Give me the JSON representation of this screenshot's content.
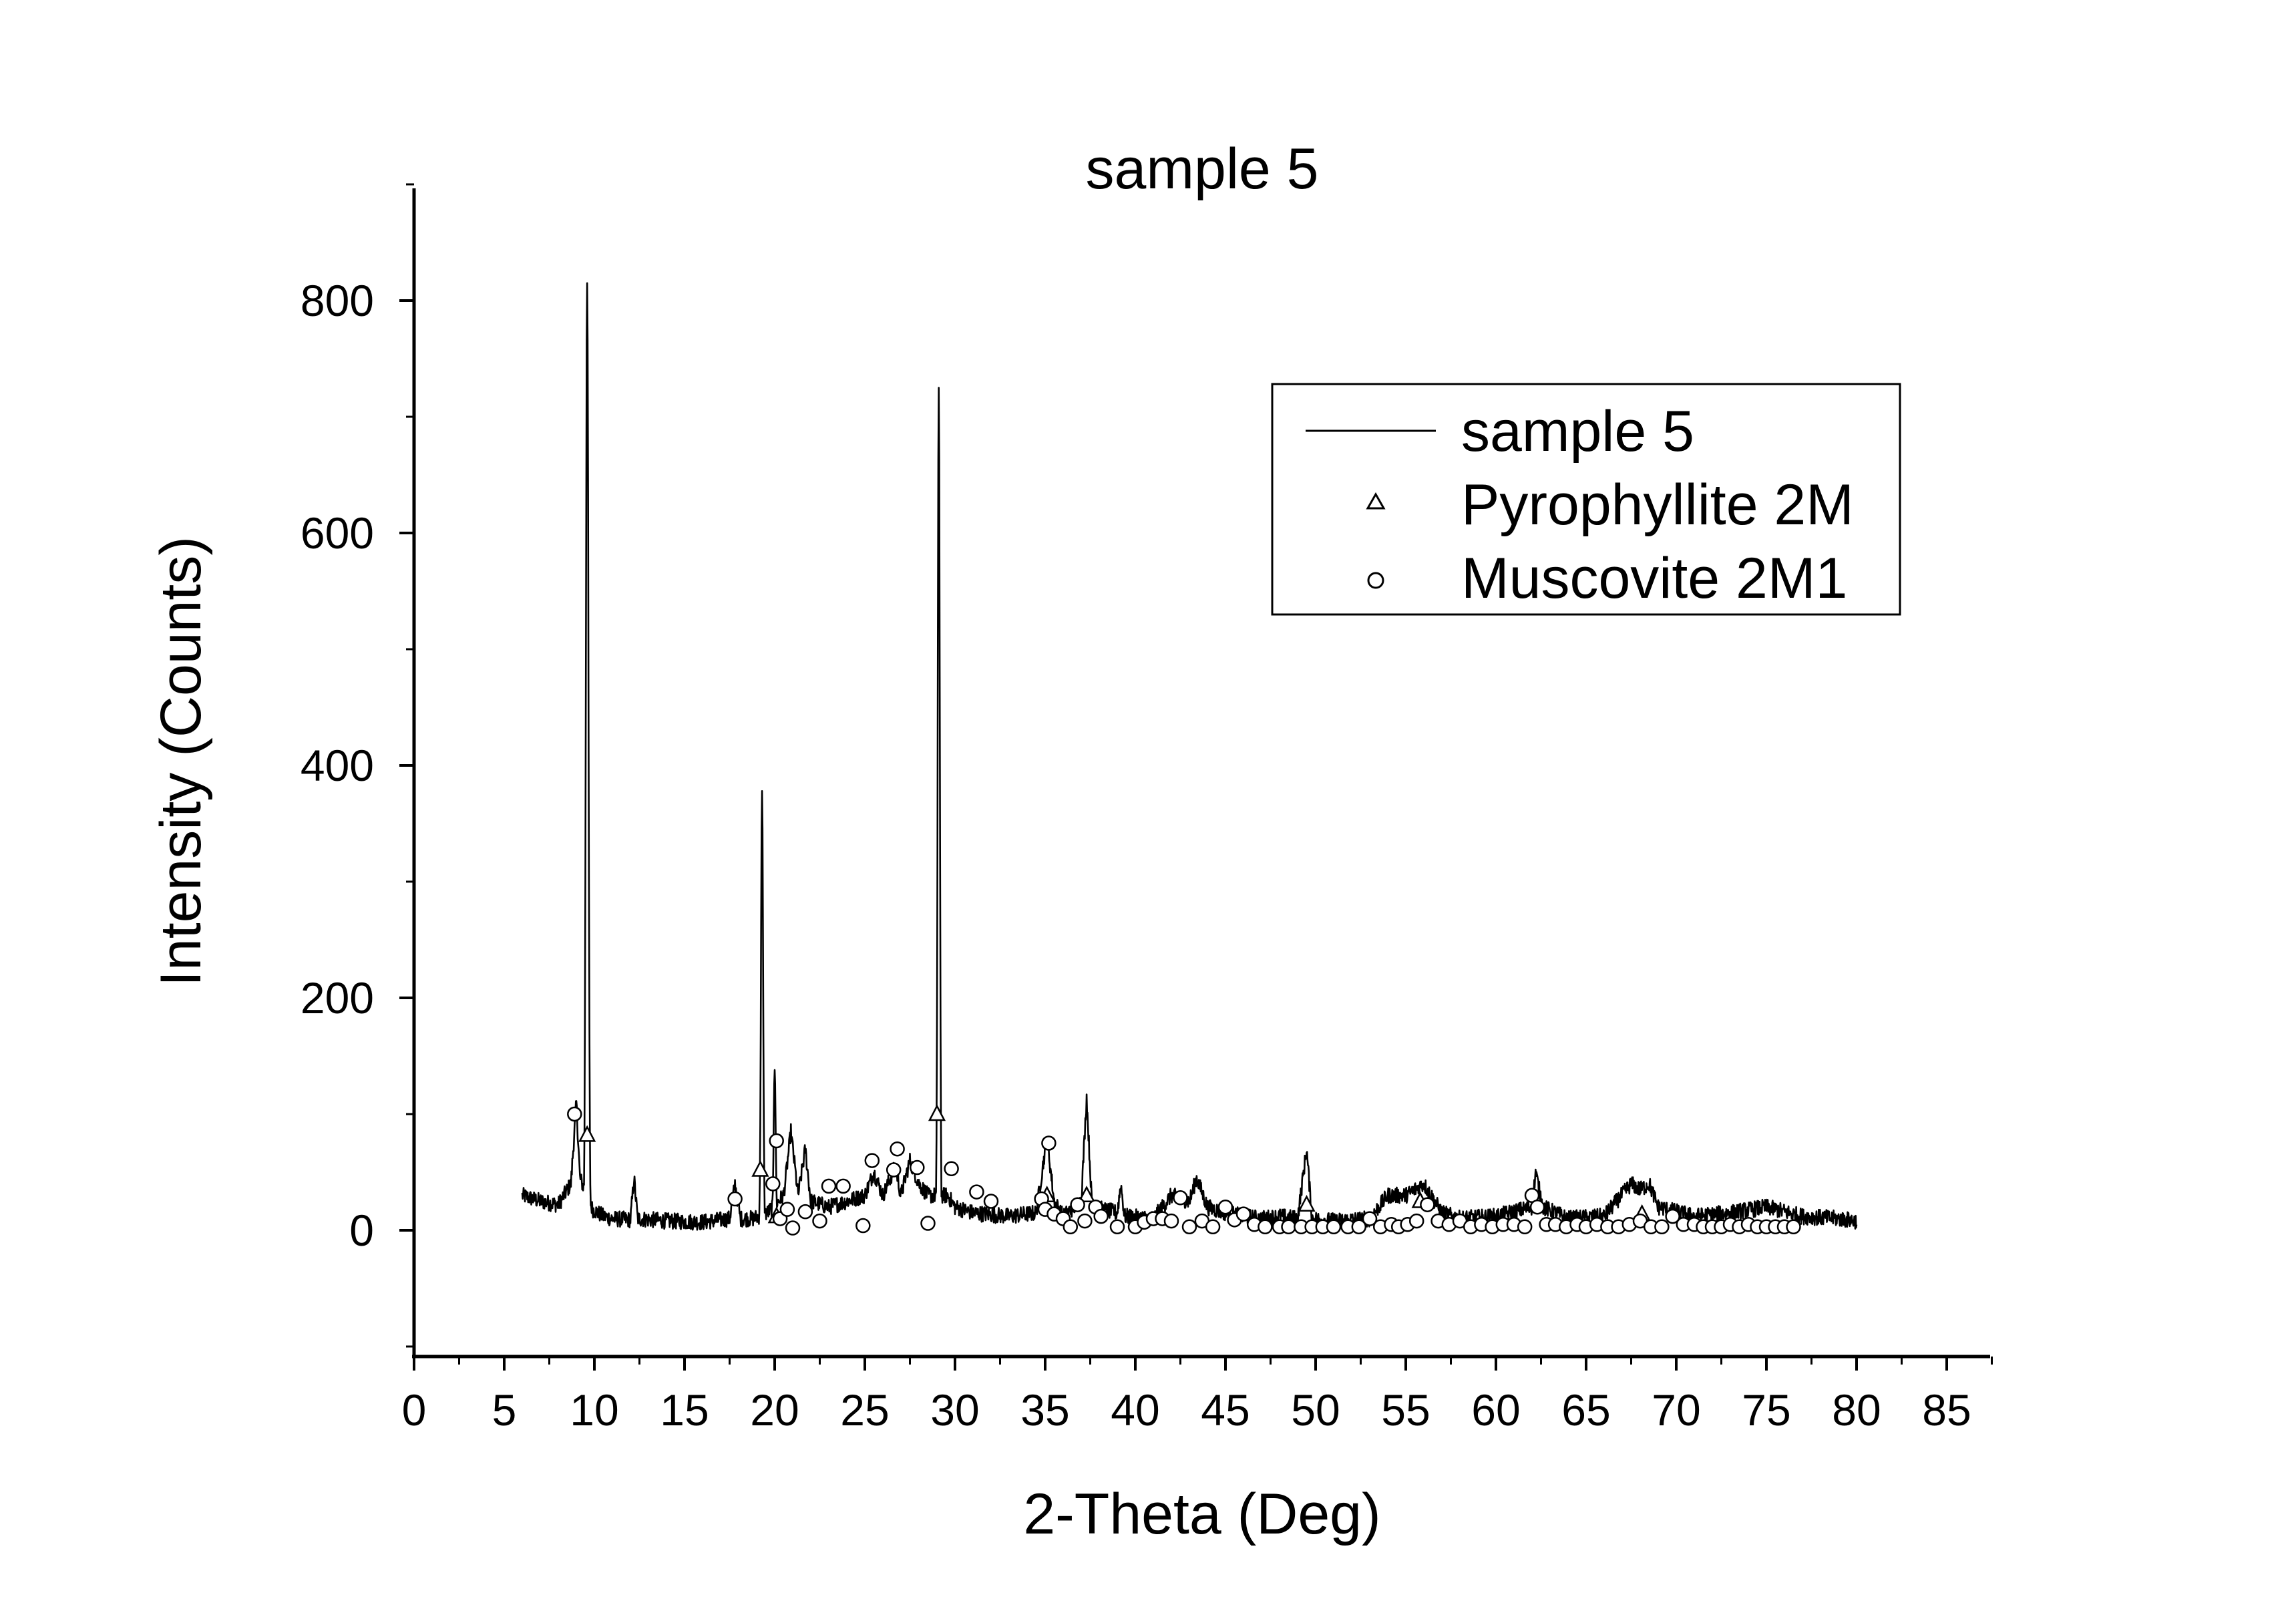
{
  "chart_data": {
    "type": "line",
    "title": "sample 5",
    "xlabel": "2-Theta (Deg)",
    "ylabel": "Intensity (Counts)",
    "xlim": [
      0,
      87.5
    ],
    "ylim": [
      -100,
      900
    ],
    "x_ticks": [
      0,
      5,
      10,
      15,
      20,
      25,
      30,
      35,
      40,
      45,
      50,
      55,
      60,
      65,
      70,
      75,
      80,
      85
    ],
    "x_tick_labels": [
      "0",
      "5",
      "10",
      "15",
      "20",
      "25",
      "30",
      "35",
      "40",
      "45",
      "50",
      "55",
      "60",
      "65",
      "70",
      "75",
      "80",
      "85"
    ],
    "y_ticks": [
      0,
      200,
      400,
      600,
      800
    ],
    "y_tick_labels": [
      "0",
      "200",
      "400",
      "600",
      "800"
    ],
    "legend": {
      "position": "top-right",
      "entries": [
        {
          "label": "sample 5",
          "marker": "line"
        },
        {
          "label": "Pyrophyllite 2M",
          "marker": "triangle"
        },
        {
          "label": "Muscovite 2M1",
          "marker": "circle"
        }
      ]
    },
    "series": [
      {
        "name": "sample 5",
        "style": "line",
        "baseline": [
          [
            6,
            30
          ],
          [
            7,
            25
          ],
          [
            8,
            22
          ],
          [
            8.7,
            40
          ],
          [
            9.0,
            110
          ],
          [
            9.2,
            45
          ],
          [
            9.9,
            18
          ],
          [
            10.5,
            12
          ],
          [
            11,
            10
          ],
          [
            12,
            9
          ],
          [
            12.2,
            45
          ],
          [
            12.4,
            10
          ],
          [
            14,
            8
          ],
          [
            16,
            7
          ],
          [
            17.5,
            10
          ],
          [
            17.8,
            40
          ],
          [
            18.1,
            10
          ],
          [
            18.8,
            10
          ],
          [
            19.6,
            15
          ],
          [
            20.5,
            30
          ],
          [
            20.9,
            85
          ],
          [
            21.3,
            30
          ],
          [
            21.7,
            70
          ],
          [
            22.0,
            25
          ],
          [
            23,
            20
          ],
          [
            24,
            25
          ],
          [
            25,
            30
          ],
          [
            25.5,
            50
          ],
          [
            26,
            30
          ],
          [
            26.7,
            55
          ],
          [
            27,
            30
          ],
          [
            27.5,
            60
          ],
          [
            28,
            40
          ],
          [
            28.5,
            30
          ],
          [
            29.6,
            30
          ],
          [
            30,
            20
          ],
          [
            31,
            15
          ],
          [
            33,
            12
          ],
          [
            34.5,
            15
          ],
          [
            35.1,
            80
          ],
          [
            35.5,
            25
          ],
          [
            36,
            12
          ],
          [
            37,
            25
          ],
          [
            37.3,
            115
          ],
          [
            37.6,
            20
          ],
          [
            39,
            15
          ],
          [
            39.2,
            40
          ],
          [
            39.4,
            12
          ],
          [
            41,
            10
          ],
          [
            42,
            30
          ],
          [
            43,
            25
          ],
          [
            43.4,
            45
          ],
          [
            44,
            20
          ],
          [
            45,
            15
          ],
          [
            46,
            12
          ],
          [
            47,
            10
          ],
          [
            48,
            12
          ],
          [
            49,
            10
          ],
          [
            49.5,
            70
          ],
          [
            49.8,
            10
          ],
          [
            51,
            8
          ],
          [
            53,
            10
          ],
          [
            54,
            30
          ],
          [
            55,
            30
          ],
          [
            56,
            40
          ],
          [
            57,
            15
          ],
          [
            58,
            10
          ],
          [
            60,
            12
          ],
          [
            62,
            20
          ],
          [
            62.2,
            50
          ],
          [
            62.6,
            20
          ],
          [
            64,
            10
          ],
          [
            66,
            12
          ],
          [
            67.5,
            40
          ],
          [
            68,
            35
          ],
          [
            68.5,
            40
          ],
          [
            69,
            20
          ],
          [
            71,
            12
          ],
          [
            73,
            15
          ],
          [
            75,
            20
          ],
          [
            77,
            12
          ],
          [
            79,
            10
          ],
          [
            80,
            8
          ]
        ],
        "peaks": [
          {
            "x": 9.6,
            "y": 815,
            "width": 0.12
          },
          {
            "x": 19.3,
            "y": 378,
            "width": 0.1
          },
          {
            "x": 20.0,
            "y": 138,
            "width": 0.1
          },
          {
            "x": 29.1,
            "y": 725,
            "width": 0.1
          }
        ]
      },
      {
        "name": "Pyrophyllite 2M",
        "style": "markers",
        "marker": "triangle",
        "points": [
          [
            9.6,
            82
          ],
          [
            19.2,
            52
          ],
          [
            20.1,
            12
          ],
          [
            29.0,
            100
          ],
          [
            35.1,
            30
          ],
          [
            37.3,
            30
          ],
          [
            49.5,
            22
          ],
          [
            55.8,
            25
          ],
          [
            68.1,
            14
          ]
        ]
      },
      {
        "name": "Muscovite 2M1",
        "style": "markers",
        "marker": "circle",
        "points": [
          [
            8.9,
            100
          ],
          [
            17.8,
            27
          ],
          [
            19.9,
            40
          ],
          [
            20.1,
            77
          ],
          [
            20.3,
            10
          ],
          [
            20.7,
            18
          ],
          [
            21.0,
            2
          ],
          [
            21.7,
            16
          ],
          [
            22.5,
            8
          ],
          [
            23.0,
            38
          ],
          [
            23.8,
            38
          ],
          [
            24.9,
            4
          ],
          [
            25.4,
            60
          ],
          [
            26.6,
            52
          ],
          [
            26.8,
            70
          ],
          [
            27.9,
            54
          ],
          [
            28.5,
            6
          ],
          [
            29.8,
            53
          ],
          [
            31.2,
            33
          ],
          [
            32.0,
            25
          ],
          [
            34.8,
            27
          ],
          [
            35.0,
            18
          ],
          [
            35.2,
            75
          ],
          [
            35.5,
            14
          ],
          [
            36.0,
            10
          ],
          [
            36.4,
            3
          ],
          [
            36.8,
            22
          ],
          [
            37.2,
            8
          ],
          [
            37.8,
            20
          ],
          [
            38.1,
            12
          ],
          [
            39.0,
            3
          ],
          [
            40.0,
            3
          ],
          [
            40.5,
            7
          ],
          [
            41.0,
            10
          ],
          [
            41.5,
            10
          ],
          [
            42.0,
            8
          ],
          [
            42.5,
            28
          ],
          [
            43.0,
            3
          ],
          [
            43.7,
            8
          ],
          [
            44.3,
            3
          ],
          [
            45.0,
            20
          ],
          [
            45.5,
            9
          ],
          [
            46.0,
            14
          ],
          [
            46.6,
            5
          ],
          [
            47.2,
            3
          ],
          [
            48.0,
            3
          ],
          [
            48.5,
            3
          ],
          [
            49.2,
            3
          ],
          [
            49.8,
            3
          ],
          [
            50.4,
            3
          ],
          [
            51.0,
            3
          ],
          [
            51.8,
            3
          ],
          [
            52.4,
            3
          ],
          [
            53.0,
            10
          ],
          [
            53.6,
            3
          ],
          [
            54.2,
            5
          ],
          [
            54.6,
            3
          ],
          [
            55.1,
            5
          ],
          [
            55.6,
            8
          ],
          [
            56.2,
            22
          ],
          [
            56.8,
            8
          ],
          [
            57.4,
            5
          ],
          [
            58.0,
            8
          ],
          [
            58.6,
            3
          ],
          [
            59.2,
            5
          ],
          [
            59.8,
            3
          ],
          [
            60.4,
            5
          ],
          [
            61.0,
            5
          ],
          [
            61.6,
            3
          ],
          [
            62.0,
            30
          ],
          [
            62.3,
            20
          ],
          [
            62.8,
            5
          ],
          [
            63.3,
            5
          ],
          [
            63.9,
            3
          ],
          [
            64.5,
            5
          ],
          [
            65.0,
            3
          ],
          [
            65.6,
            5
          ],
          [
            66.2,
            3
          ],
          [
            66.8,
            3
          ],
          [
            67.4,
            5
          ],
          [
            68.0,
            8
          ],
          [
            68.6,
            3
          ],
          [
            69.2,
            3
          ],
          [
            69.8,
            12
          ],
          [
            70.4,
            5
          ],
          [
            71.0,
            5
          ],
          [
            71.5,
            3
          ],
          [
            72.0,
            3
          ],
          [
            72.5,
            3
          ],
          [
            73.0,
            5
          ],
          [
            73.5,
            3
          ],
          [
            74.0,
            5
          ],
          [
            74.5,
            3
          ],
          [
            75.0,
            3
          ],
          [
            75.5,
            3
          ],
          [
            76.0,
            3
          ],
          [
            76.5,
            3
          ]
        ]
      }
    ]
  }
}
